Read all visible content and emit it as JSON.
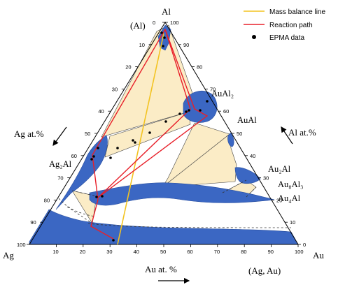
{
  "legend": {
    "mass_balance": "Mass balance line",
    "reaction_path": "Reaction path",
    "epma": "EPMA data"
  },
  "corners": {
    "top": "Al",
    "left": "Ag",
    "right": "Au"
  },
  "labels": {
    "al_region": "(Al)",
    "agau_region": "(Ag, Au)",
    "ag_axis": "Ag at.%",
    "al_axis": "Al at.%",
    "au_axis": "Au at. %"
  },
  "phases": {
    "AuAl2": "AuAl₂",
    "AuAl": "AuAl",
    "Ag2Al": "Ag₂Al",
    "Au2Al": "Au₂Al",
    "Au8Al3": "Au₈Al₃",
    "Au4Al": "Au₄Al"
  },
  "ticks": {
    "bottom": [
      "10",
      "20",
      "30",
      "40",
      "50",
      "60",
      "70",
      "80",
      "90",
      "100"
    ],
    "right": [
      "0",
      "10",
      "20",
      "30",
      "40",
      "50",
      "60",
      "70",
      "80",
      "90",
      "100"
    ],
    "left": [
      "0",
      "10",
      "20",
      "30",
      "40",
      "50",
      "60",
      "70",
      "80",
      "90",
      "100"
    ]
  },
  "colors": {
    "single_phase": "#3b67c3",
    "two_phase": "#fbecc6",
    "mass_balance": "#f3c321",
    "reaction_path": "#e8202a",
    "epma": "#000000"
  }
}
